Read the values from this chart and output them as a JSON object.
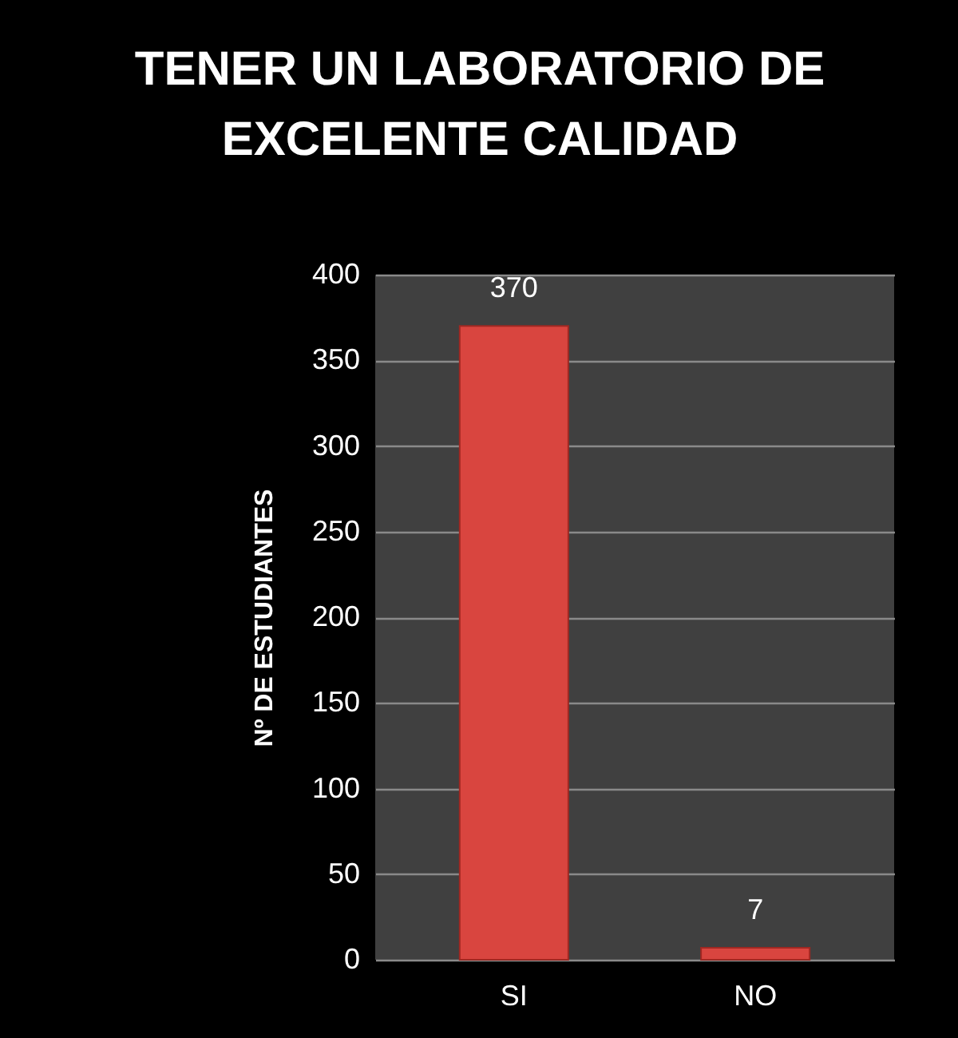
{
  "chart_data": {
    "type": "bar",
    "title": "TENER UN LABORATORIO DE EXCELENTE CALIDAD",
    "ylabel": "Nº DE ESTUDIANTES",
    "categories": [
      "SI",
      "NO"
    ],
    "values": [
      370,
      7
    ],
    "color": "#d9453f",
    "ylim": [
      0,
      400
    ],
    "yticks": [
      0,
      50,
      100,
      150,
      200,
      250,
      300,
      350,
      400
    ],
    "grid": "y",
    "data_labels": true
  }
}
